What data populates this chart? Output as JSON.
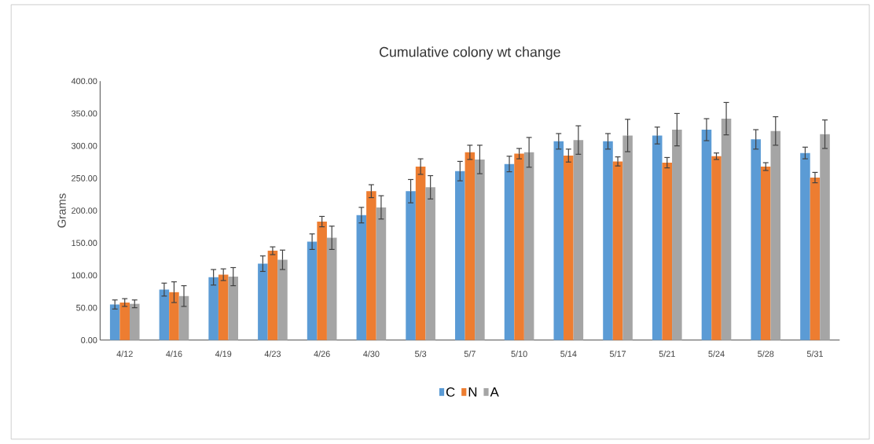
{
  "chart_data": {
    "type": "bar",
    "title": "Cumulative colony wt change",
    "ylabel": "Grams",
    "categories": [
      "4/12",
      "4/16",
      "4/19",
      "4/23",
      "4/26",
      "4/30",
      "5/3",
      "5/7",
      "5/10",
      "5/14",
      "5/17",
      "5/21",
      "5/24",
      "5/28",
      "5/31"
    ],
    "series": [
      {
        "name": "C",
        "color": "#5b9bd5",
        "values": [
          55,
          78,
          97,
          118,
          152,
          193,
          230,
          261,
          272,
          307,
          307,
          316,
          325,
          310,
          289
        ],
        "errors": [
          7,
          10,
          12,
          12,
          12,
          12,
          18,
          15,
          12,
          12,
          12,
          13,
          17,
          15,
          9
        ]
      },
      {
        "name": "N",
        "color": "#ed7d31",
        "values": [
          58,
          74,
          101,
          138,
          183,
          230,
          268,
          290,
          288,
          285,
          276,
          274,
          284,
          268,
          251
        ],
        "errors": [
          6,
          16,
          9,
          6,
          8,
          10,
          12,
          11,
          8,
          10,
          7,
          8,
          5,
          6,
          8
        ]
      },
      {
        "name": "A",
        "color": "#a5a5a5",
        "values": [
          56,
          68,
          98,
          124,
          158,
          205,
          236,
          279,
          290,
          309,
          316,
          325,
          342,
          323,
          318
        ],
        "errors": [
          6,
          16,
          14,
          15,
          18,
          18,
          18,
          22,
          23,
          22,
          25,
          25,
          25,
          22,
          22
        ]
      }
    ],
    "ylim": [
      0,
      400
    ],
    "yticks": [
      {
        "value": 0,
        "label": "0.00"
      },
      {
        "value": 50,
        "label": "50.00"
      },
      {
        "value": 100,
        "label": "100.00"
      },
      {
        "value": 150,
        "label": "150.00"
      },
      {
        "value": 200,
        "label": "200.00"
      },
      {
        "value": 250,
        "label": "250.00"
      },
      {
        "value": 300,
        "label": "300.00"
      },
      {
        "value": 350,
        "label": "350.00"
      },
      {
        "value": 400,
        "label": "400.00"
      }
    ],
    "legend": "bottom",
    "grid": false
  }
}
